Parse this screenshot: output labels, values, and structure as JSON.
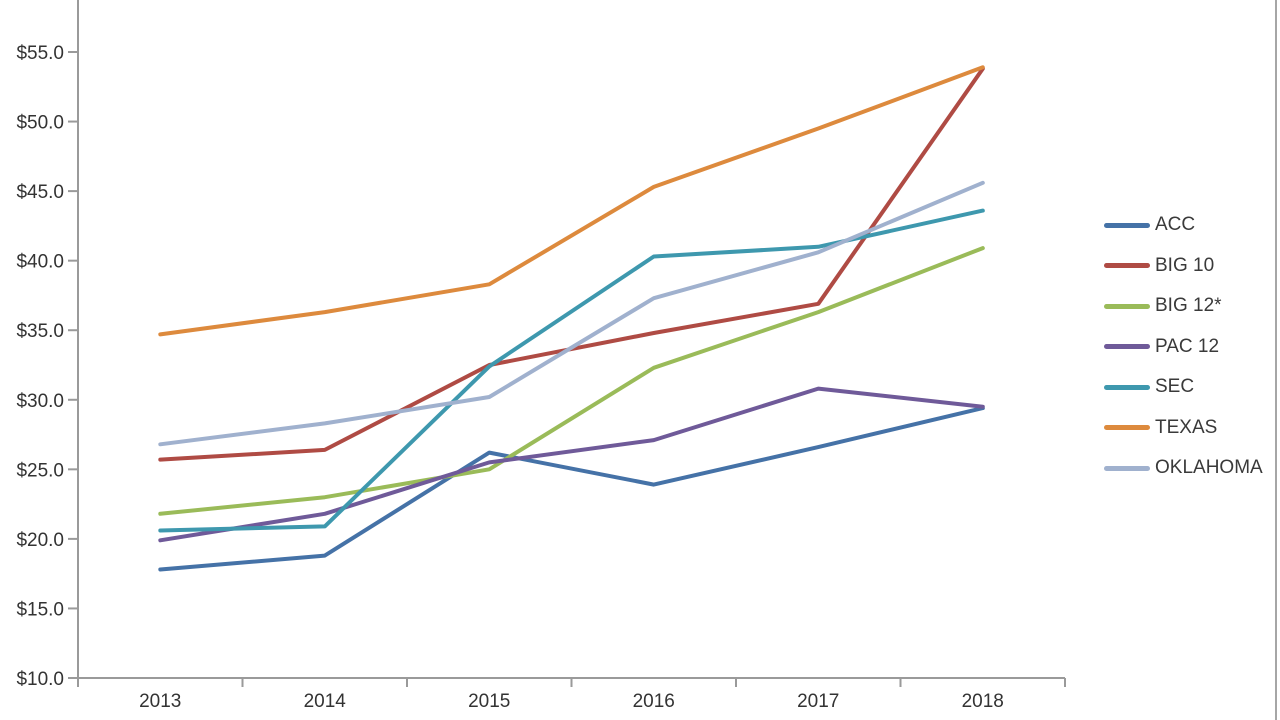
{
  "chart_data": {
    "type": "line",
    "title": "",
    "x_labels": [
      "2013",
      "2014",
      "2015",
      "2016",
      "2017",
      "2018"
    ],
    "y_axis": {
      "min": 10,
      "max": 55,
      "step": 5,
      "tick_labels": [
        "$10.0",
        "$15.0",
        "$20.0",
        "$25.0",
        "$30.0",
        "$35.0",
        "$40.0",
        "$45.0",
        "$50.0",
        "$55.0"
      ]
    },
    "series": [
      {
        "name": "ACC",
        "color": "#4572A7",
        "values": [
          17.8,
          18.8,
          26.2,
          23.9,
          26.6,
          29.4
        ]
      },
      {
        "name": "BIG 10",
        "color": "#AF4B44",
        "values": [
          25.7,
          26.4,
          32.5,
          34.8,
          36.9,
          53.8
        ]
      },
      {
        "name": "BIG 12*",
        "color": "#9ABB59",
        "values": [
          21.8,
          23.0,
          25.0,
          32.3,
          36.3,
          40.9
        ]
      },
      {
        "name": "PAC 12",
        "color": "#6F5A99",
        "values": [
          19.9,
          21.8,
          25.5,
          27.1,
          30.8,
          29.5
        ]
      },
      {
        "name": "SEC",
        "color": "#3E98AE",
        "values": [
          20.6,
          20.9,
          32.4,
          40.3,
          41.0,
          43.6
        ]
      },
      {
        "name": "TEXAS",
        "color": "#DD8A3D",
        "values": [
          34.7,
          36.3,
          38.3,
          45.3,
          49.5,
          53.9
        ]
      },
      {
        "name": "OKLAHOMA",
        "color": "#A0B1CE",
        "values": [
          26.8,
          28.3,
          30.2,
          37.3,
          40.6,
          45.6
        ]
      }
    ],
    "legend_position": "right",
    "grid": false,
    "axis_color": "#9a9a9a",
    "line_width": 4
  }
}
